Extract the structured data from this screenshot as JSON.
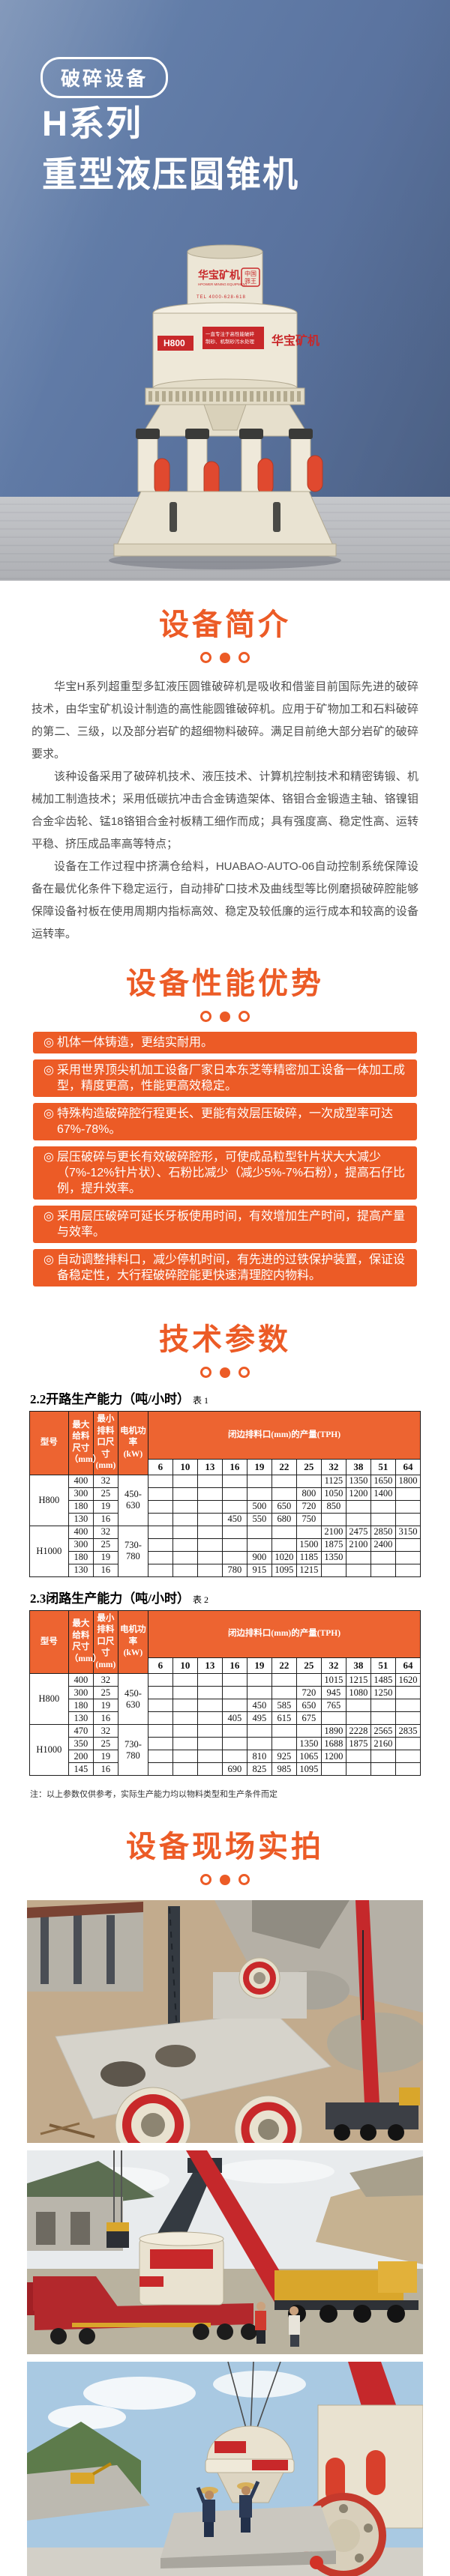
{
  "theme": {
    "accent": "#ec5b26",
    "table_header": "#ed6431",
    "hero_blue": "#5d77a1",
    "brand_red": "#c8282a"
  },
  "hero": {
    "badge": "破碎设备",
    "title_line1": "H系列",
    "title_line2": "重型液压圆锥机",
    "machine": {
      "model_label": "H800",
      "brand": "华宝矿机",
      "brand_en": "HPOWER MINING EQUIPMENT",
      "tel": "TEL 4000-628-618",
      "seal_line1": "中国",
      "seal_line2": "筛王",
      "banner_line1": "一直专注于高性能破碎",
      "banner_line2": "制砂、机制砂污水处理"
    }
  },
  "intro": {
    "title": "设备简介",
    "paragraphs": [
      "华宝H系列超重型多缸液压圆锥破碎机是吸收和借鉴目前国际先进的破碎技术，由华宝矿机设计制造的高性能圆锥破碎机。应用于矿物加工和石料破碎的第二、三级，以及部分岩矿的超细物料破碎。满足目前绝大部分岩矿的破碎要求。",
      "该种设备采用了破碎机技术、液压技术、计算机控制技术和精密铸锻、机械加工制造技术；采用低碳抗冲击合金铸造架体、铬钼合金锻造主轴、铬镍钼合金伞齿轮、锰18铬钼合金衬板精工细作而成；具有强度高、稳定性高、运转平稳、挤压成品率高等特点；",
      "设备在工作过程中挤满仓给料，HUABAO-AUTO-06自动控制系统保障设备在最优化条件下稳定运行，自动排矿口技术及曲线型等比例磨损破碎腔能够保障设备衬板在使用周期内指标高效、稳定及较低廉的运行成本和较高的设备运转率。"
    ]
  },
  "advantages": {
    "title": "设备性能优势",
    "bullet": "◎",
    "items": [
      "机体一体铸造，更结实耐用。",
      "采用世界顶尖机加工设备厂家日本东芝等精密加工设备一体加工成型，精度更高，性能更高效稳定。",
      "特殊构造破碎腔行程更长、更能有效层压破碎，一次成型率可达67%-78%。",
      "层压破碎与更长有效破碎腔形，可使成品粒型针片状大大减少（7%-12%针片状）、石粉比减少（减少5%-7%石粉），提高石仔比例，提升效率。",
      "采用层压破碎可延长牙板使用时间，有效增加生产时间，提高产量与效率。",
      "自动调整排料口，减少停机时间，有先进的过铁保护装置，保证设备稳定性，大行程破碎腔能更快速清理腔内物料。"
    ]
  },
  "params": {
    "title": "技术参数",
    "header": {
      "model": "型号",
      "max_feed": "最大给料尺寸（mm）",
      "min_css": "最小排料口尺寸(mm)",
      "power": "电机功率(kW)",
      "span": "闭边排料口(mm)的产量(TPH)",
      "css_values": [
        "6",
        "10",
        "13",
        "16",
        "19",
        "22",
        "25",
        "32",
        "38",
        "51",
        "64"
      ]
    },
    "tables": [
      {
        "caption": "2.2开路生产能力（吨/小时）",
        "tag": "表 1",
        "groups": [
          {
            "model": "H800",
            "power": "450-630",
            "rows": [
              {
                "feed": "400",
                "css": "32",
                "vals": [
                  "",
                  "",
                  "",
                  "",
                  "",
                  "",
                  "",
                  "1125",
                  "1350",
                  "1650",
                  "1800"
                ]
              },
              {
                "feed": "300",
                "css": "25",
                "vals": [
                  "",
                  "",
                  "",
                  "",
                  "",
                  "",
                  "800",
                  "1050",
                  "1200",
                  "1400",
                  ""
                ]
              },
              {
                "feed": "180",
                "css": "19",
                "vals": [
                  "",
                  "",
                  "",
                  "",
                  "500",
                  "650",
                  "720",
                  "850",
                  "",
                  "",
                  ""
                ]
              },
              {
                "feed": "130",
                "css": "16",
                "vals": [
                  "",
                  "",
                  "",
                  "450",
                  "550",
                  "680",
                  "750",
                  "",
                  "",
                  "",
                  ""
                ]
              }
            ]
          },
          {
            "model": "H1000",
            "power": "730-780",
            "rows": [
              {
                "feed": "400",
                "css": "32",
                "vals": [
                  "",
                  "",
                  "",
                  "",
                  "",
                  "",
                  "",
                  "2100",
                  "2475",
                  "2850",
                  "3150"
                ]
              },
              {
                "feed": "300",
                "css": "25",
                "vals": [
                  "",
                  "",
                  "",
                  "",
                  "",
                  "",
                  "1500",
                  "1875",
                  "2100",
                  "2400",
                  ""
                ]
              },
              {
                "feed": "180",
                "css": "19",
                "vals": [
                  "",
                  "",
                  "",
                  "",
                  "900",
                  "1020",
                  "1185",
                  "1350",
                  "",
                  "",
                  ""
                ]
              },
              {
                "feed": "130",
                "css": "16",
                "vals": [
                  "",
                  "",
                  "",
                  "780",
                  "915",
                  "1095",
                  "1215",
                  "",
                  "",
                  "",
                  ""
                ]
              }
            ]
          }
        ]
      },
      {
        "caption": "2.3闭路生产能力（吨/小时）",
        "tag": "表 2",
        "groups": [
          {
            "model": "H800",
            "power": "450-630",
            "rows": [
              {
                "feed": "400",
                "css": "32",
                "vals": [
                  "",
                  "",
                  "",
                  "",
                  "",
                  "",
                  "",
                  "1015",
                  "1215",
                  "1485",
                  "1620"
                ]
              },
              {
                "feed": "300",
                "css": "25",
                "vals": [
                  "",
                  "",
                  "",
                  "",
                  "",
                  "",
                  "720",
                  "945",
                  "1080",
                  "1250",
                  ""
                ]
              },
              {
                "feed": "180",
                "css": "19",
                "vals": [
                  "",
                  "",
                  "",
                  "",
                  "450",
                  "585",
                  "650",
                  "765",
                  "",
                  "",
                  ""
                ]
              },
              {
                "feed": "130",
                "css": "16",
                "vals": [
                  "",
                  "",
                  "",
                  "405",
                  "495",
                  "615",
                  "675",
                  "",
                  "",
                  "",
                  ""
                ]
              }
            ]
          },
          {
            "model": "H1000",
            "power": "730-780",
            "rows": [
              {
                "feed": "470",
                "css": "32",
                "vals": [
                  "",
                  "",
                  "",
                  "",
                  "",
                  "",
                  "",
                  "1890",
                  "2228",
                  "2565",
                  "2835"
                ]
              },
              {
                "feed": "350",
                "css": "25",
                "vals": [
                  "",
                  "",
                  "",
                  "",
                  "",
                  "",
                  "1350",
                  "1688",
                  "1875",
                  "2160",
                  ""
                ]
              },
              {
                "feed": "200",
                "css": "19",
                "vals": [
                  "",
                  "",
                  "",
                  "",
                  "810",
                  "925",
                  "1065",
                  "1200",
                  "",
                  "",
                  ""
                ]
              },
              {
                "feed": "145",
                "css": "16",
                "vals": [
                  "",
                  "",
                  "",
                  "690",
                  "825",
                  "985",
                  "1095",
                  "",
                  "",
                  "",
                  ""
                ]
              }
            ]
          }
        ]
      }
    ],
    "note": "注：以上参数仅供参考，实际生产能力均以物料类型和生产条件而定"
  },
  "photos": {
    "title": "设备现场实拍",
    "items": [
      "photo-aerial-quarry-installation",
      "photo-crane-truck-loading",
      "photo-crusher-hoisting-workers"
    ]
  }
}
